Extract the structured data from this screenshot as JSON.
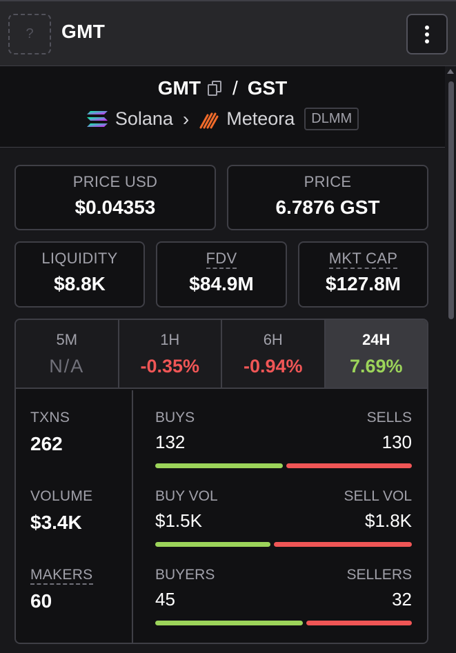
{
  "header": {
    "title": "GMT",
    "avatar_icon": "question-icon",
    "avatar_glyph": "?"
  },
  "pair": {
    "base": "GMT",
    "separator": "/",
    "quote": "GST"
  },
  "chain": {
    "network": "Solana",
    "dex": "Meteora",
    "pool_type": "DLMM"
  },
  "price_cards": [
    {
      "label": "PRICE USD",
      "value": "$0.04353"
    },
    {
      "label": "PRICE",
      "value": "6.7876 GST"
    }
  ],
  "metric_cards": [
    {
      "label": "LIQUIDITY",
      "value": "$8.8K"
    },
    {
      "label": "FDV",
      "value": "$84.9M"
    },
    {
      "label": "MKT CAP",
      "value": "$127.8M"
    }
  ],
  "tabs": [
    {
      "label": "5M",
      "value": "N/A"
    },
    {
      "label": "1H",
      "value": "-0.35%"
    },
    {
      "label": "6H",
      "value": "-0.94%"
    },
    {
      "label": "24H",
      "value": "7.69%"
    }
  ],
  "active_tab": "24H",
  "summary": [
    {
      "label": "TXNS",
      "value": "262"
    },
    {
      "label": "VOLUME",
      "value": "$3.4K"
    },
    {
      "label": "MAKERS",
      "value": "60"
    }
  ],
  "breakdown": [
    {
      "left_label": "BUYS",
      "right_label": "SELLS",
      "left_value": "132",
      "right_value": "130",
      "left_share": 0.504
    },
    {
      "left_label": "BUY VOL",
      "right_label": "SELL VOL",
      "left_value": "$1.5K",
      "right_value": "$1.8K",
      "left_share": 0.455
    },
    {
      "left_label": "BUYERS",
      "right_label": "SELLERS",
      "left_value": "45",
      "right_value": "32",
      "left_share": 0.584
    }
  ],
  "colors": {
    "positive": "#9cd45a",
    "negative": "#f05656",
    "background": "#18181b"
  }
}
